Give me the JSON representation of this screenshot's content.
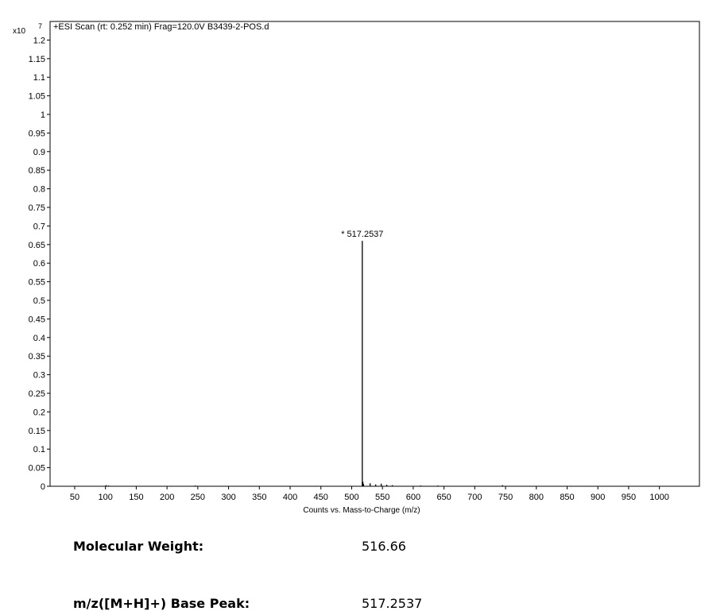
{
  "chart_data": {
    "type": "stem",
    "title": "+ESI Scan (rt: 0.252 min) Frag=120.0V B3439-2-POS.d",
    "x_label": "Counts vs. Mass-to-Charge (m/z)",
    "y_multiplier": "x10",
    "y_multiplier_exponent": "7",
    "x": [
      101,
      105,
      246,
      517.2537,
      518.26,
      519.26,
      530,
      539,
      548,
      557,
      566,
      612,
      640,
      745
    ],
    "series": [
      {
        "color": "#000000",
        "values": [
          0.003,
          0.002,
          0.002,
          0.66,
          0.012,
          0.006,
          0.008,
          0.005,
          0.007,
          0.004,
          0.003,
          0.002,
          0.002,
          0.003
        ]
      }
    ],
    "annotations": [
      {
        "text": "* 517.2537",
        "x": 517.2537,
        "y": 0.66
      }
    ],
    "xlim": [
      10,
      1065
    ],
    "ylim": [
      0,
      1.25
    ],
    "xticks": [
      50,
      100,
      150,
      200,
      250,
      300,
      350,
      400,
      450,
      500,
      550,
      600,
      650,
      700,
      750,
      800,
      850,
      900,
      950,
      1000
    ],
    "yticks": [
      0,
      0.05,
      0.1,
      0.15,
      0.2,
      0.25,
      0.3,
      0.35,
      0.4,
      0.45,
      0.5,
      0.55,
      0.6,
      0.65,
      0.7,
      0.75,
      0.8,
      0.85,
      0.9,
      0.95,
      1,
      1.05,
      1.1,
      1.15,
      1.2
    ]
  },
  "properties": [
    {
      "label": "Molecular Weight:",
      "value": "516.66"
    },
    {
      "label": "m/z([M+H]+) Base Peak:",
      "value": "517.2537"
    }
  ]
}
